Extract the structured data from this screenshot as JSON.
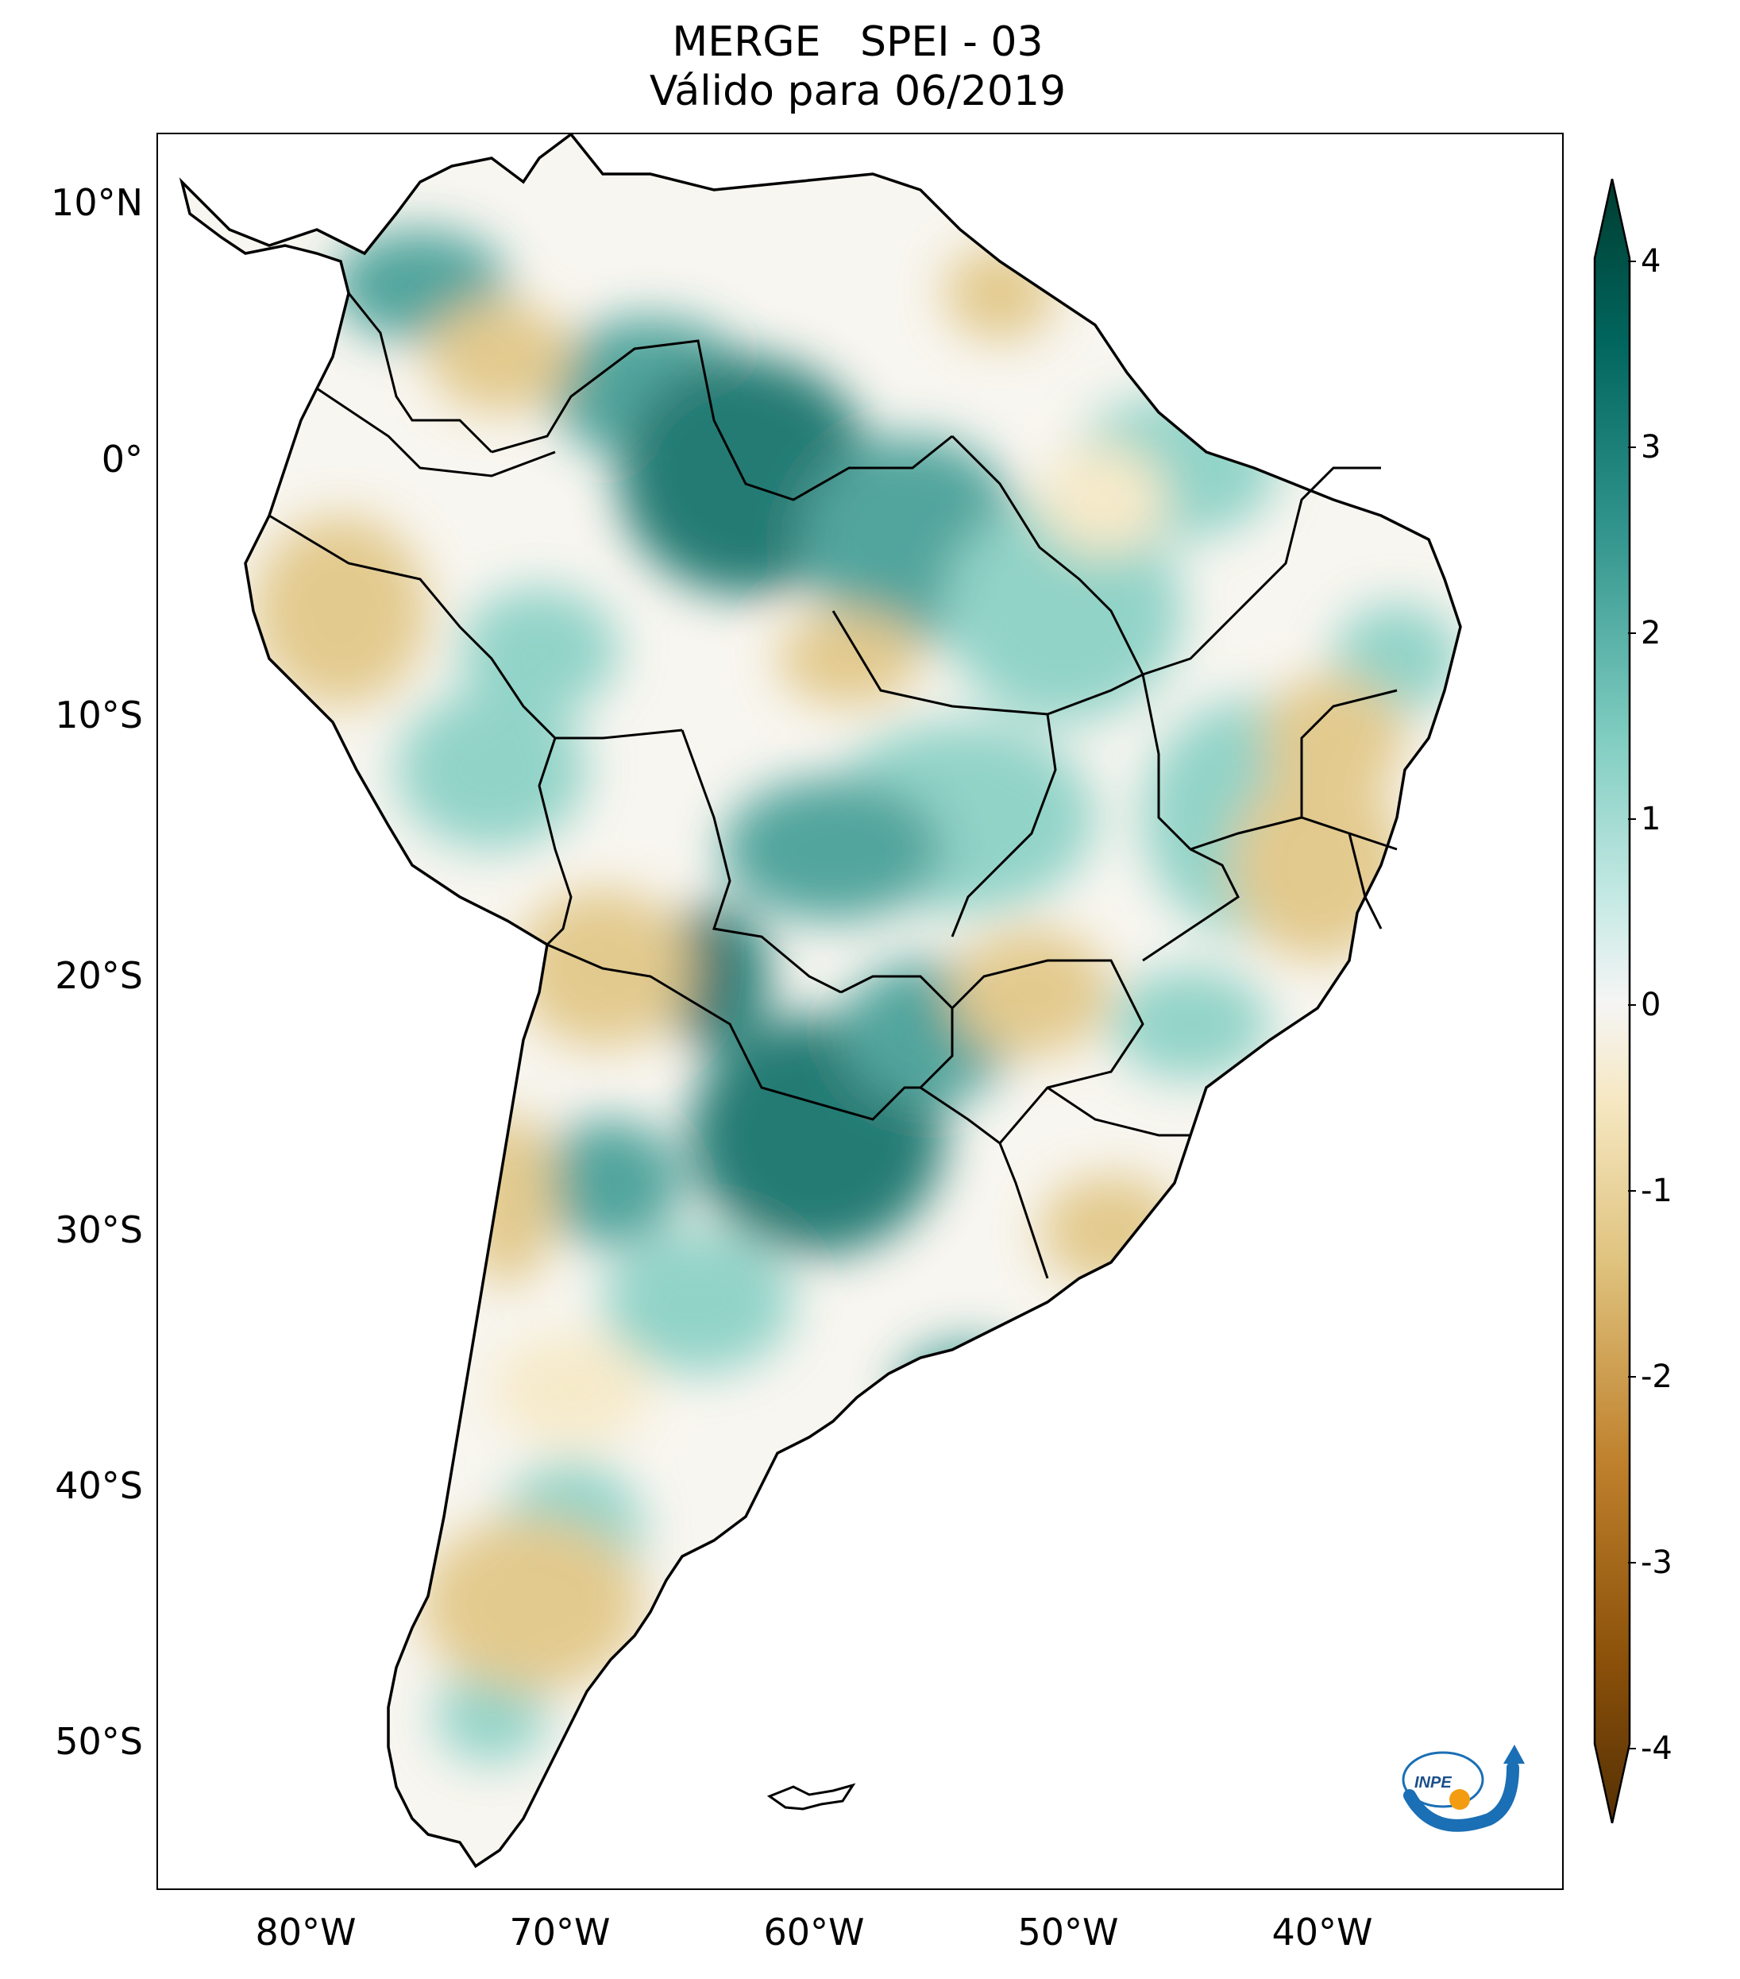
{
  "title": {
    "line1": "MERGE   SPEI - 03",
    "line2": "Válido para 06/2019"
  },
  "map": {
    "region": "South America",
    "lon_range": [
      -85,
      -29
    ],
    "lat_range": [
      -56,
      13
    ],
    "lat_labels": [
      "10°N",
      "0°",
      "10°S",
      "20°S",
      "30°S",
      "40°S",
      "50°S"
    ],
    "lat_values": [
      10,
      0,
      -10,
      -20,
      -30,
      -40,
      -50
    ],
    "lon_labels": [
      "80°W",
      "70°W",
      "60°W",
      "50°W",
      "40°W"
    ],
    "lon_values": [
      -80,
      -70,
      -60,
      -50,
      -40
    ]
  },
  "colorbar": {
    "ticks": [
      "4",
      "3",
      "2",
      "1",
      "0",
      "-1",
      "-2",
      "-3",
      "-4"
    ],
    "range": [
      -4,
      4
    ],
    "colormap": "BrBG",
    "colors": [
      "#543005",
      "#8c510a",
      "#bf812d",
      "#dfc27d",
      "#f6e8c3",
      "#f5f5f5",
      "#c7eae5",
      "#80cdc1",
      "#35978f",
      "#01665e",
      "#003c30"
    ]
  },
  "logo": {
    "text": "INPE"
  }
}
